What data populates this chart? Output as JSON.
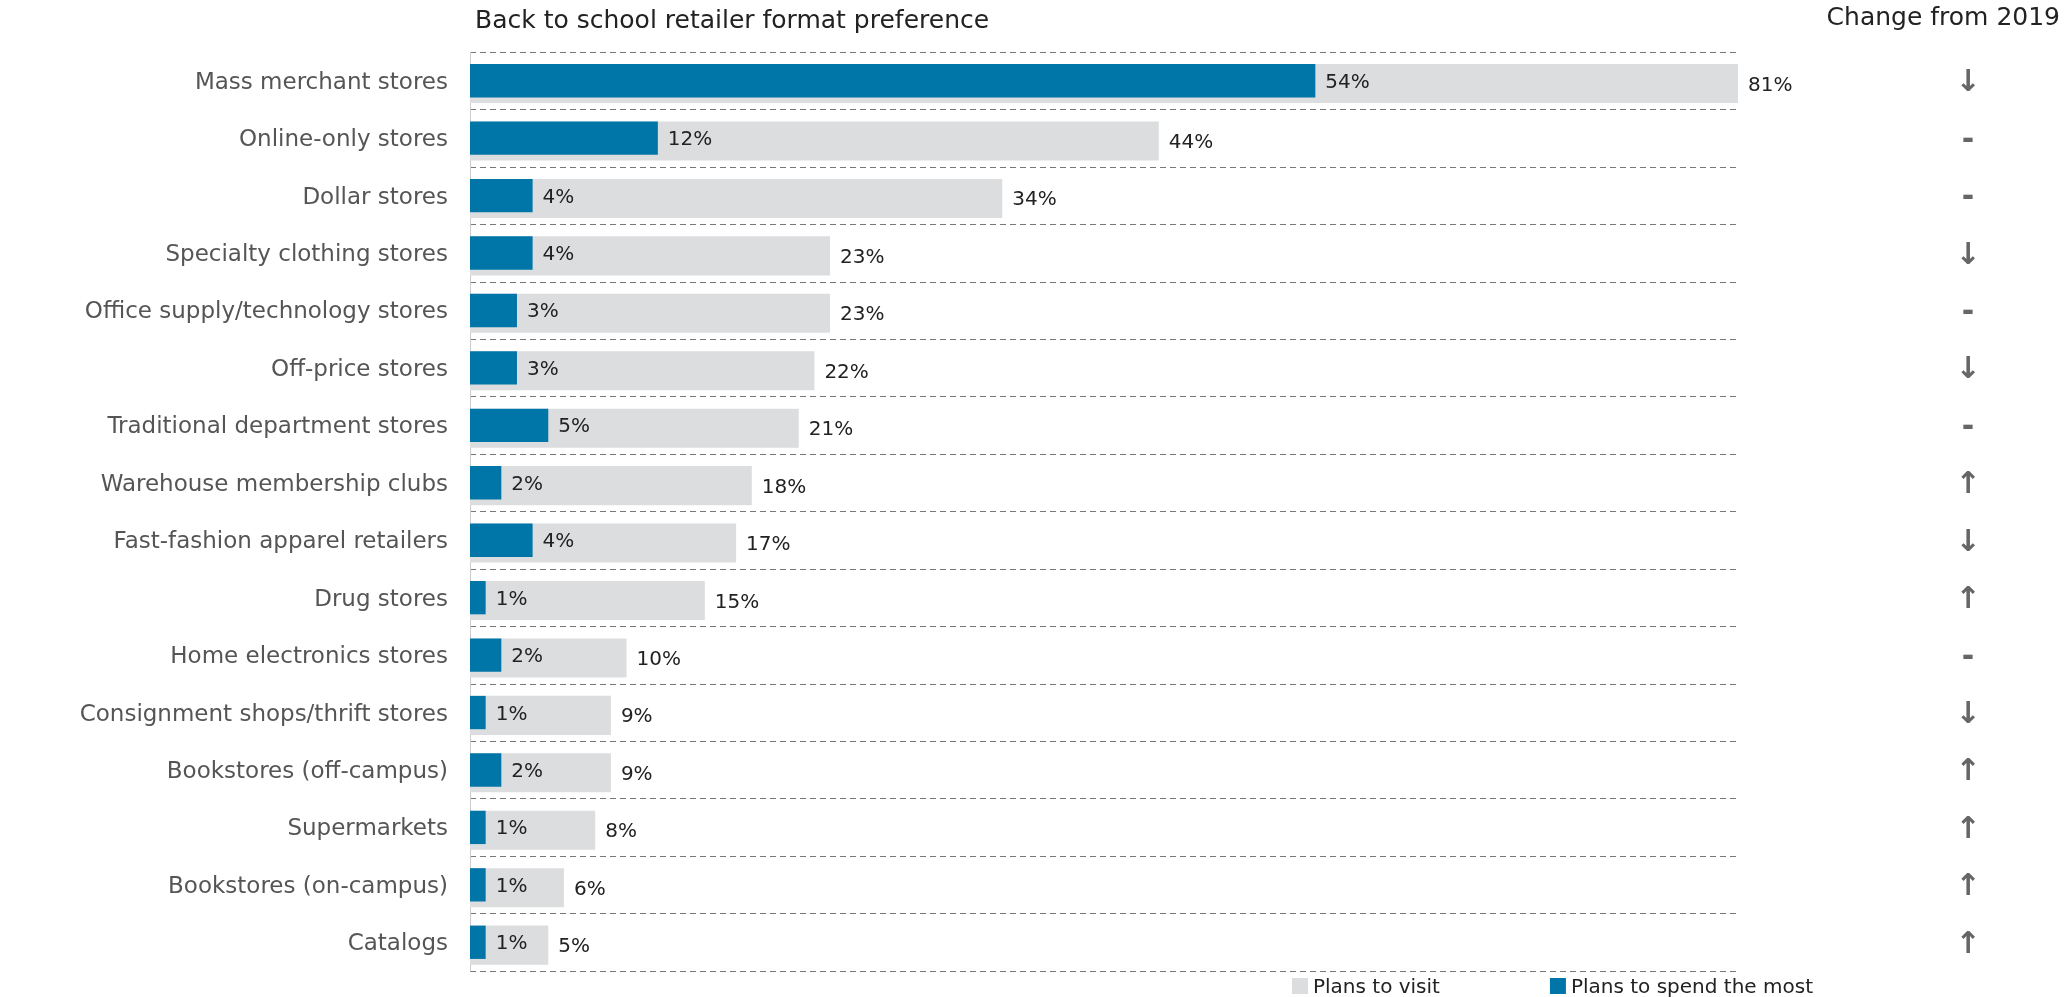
{
  "chart_data": {
    "type": "bar",
    "orientation": "horizontal",
    "title": "Back to school retailer format preference",
    "categories": [
      "Mass merchant stores",
      "Online-only stores",
      "Dollar stores",
      "Specialty clothing stores",
      "Office supply/technology stores",
      "Off-price stores",
      "Traditional department stores",
      "Warehouse membership clubs",
      "Fast-fashion apparel retailers",
      "Drug stores",
      "Home electronics stores",
      "Consignment shops/thrift stores",
      "Bookstores (off-campus)",
      "Supermarkets",
      "Bookstores (on-campus)",
      "Catalogs"
    ],
    "series": [
      {
        "name": "Plans to visit",
        "color": "#dcdddf",
        "values": [
          81,
          44,
          34,
          23,
          23,
          22,
          21,
          18,
          17,
          15,
          10,
          9,
          9,
          8,
          6,
          5
        ],
        "value_labels": [
          "81%",
          "44%",
          "34%",
          "23%",
          "23%",
          "22%",
          "21%",
          "18%",
          "17%",
          "15%",
          "10%",
          "9%",
          "9%",
          "8%",
          "6%",
          "5%"
        ]
      },
      {
        "name": "Plans to spend the most",
        "color": "#0076a8",
        "values": [
          54,
          12,
          4,
          4,
          3,
          3,
          5,
          2,
          4,
          1,
          2,
          1,
          2,
          1,
          1,
          1
        ],
        "value_labels": [
          "54%",
          "12%",
          "4%",
          "4%",
          "3%",
          "3%",
          "5%",
          "2%",
          "4%",
          "1%",
          "2%",
          "1%",
          "2%",
          "1%",
          "1%",
          "1%"
        ]
      }
    ],
    "annotations": [
      "Change from 2019",
      "↓",
      "-",
      "-",
      "↓",
      "-",
      "↓",
      "-",
      "↑",
      "↓",
      "↑",
      "-",
      "↓",
      "↑",
      "↑",
      "↑",
      "↑"
    ],
    "grid": "y",
    "legend": "bottom right"
  }
}
